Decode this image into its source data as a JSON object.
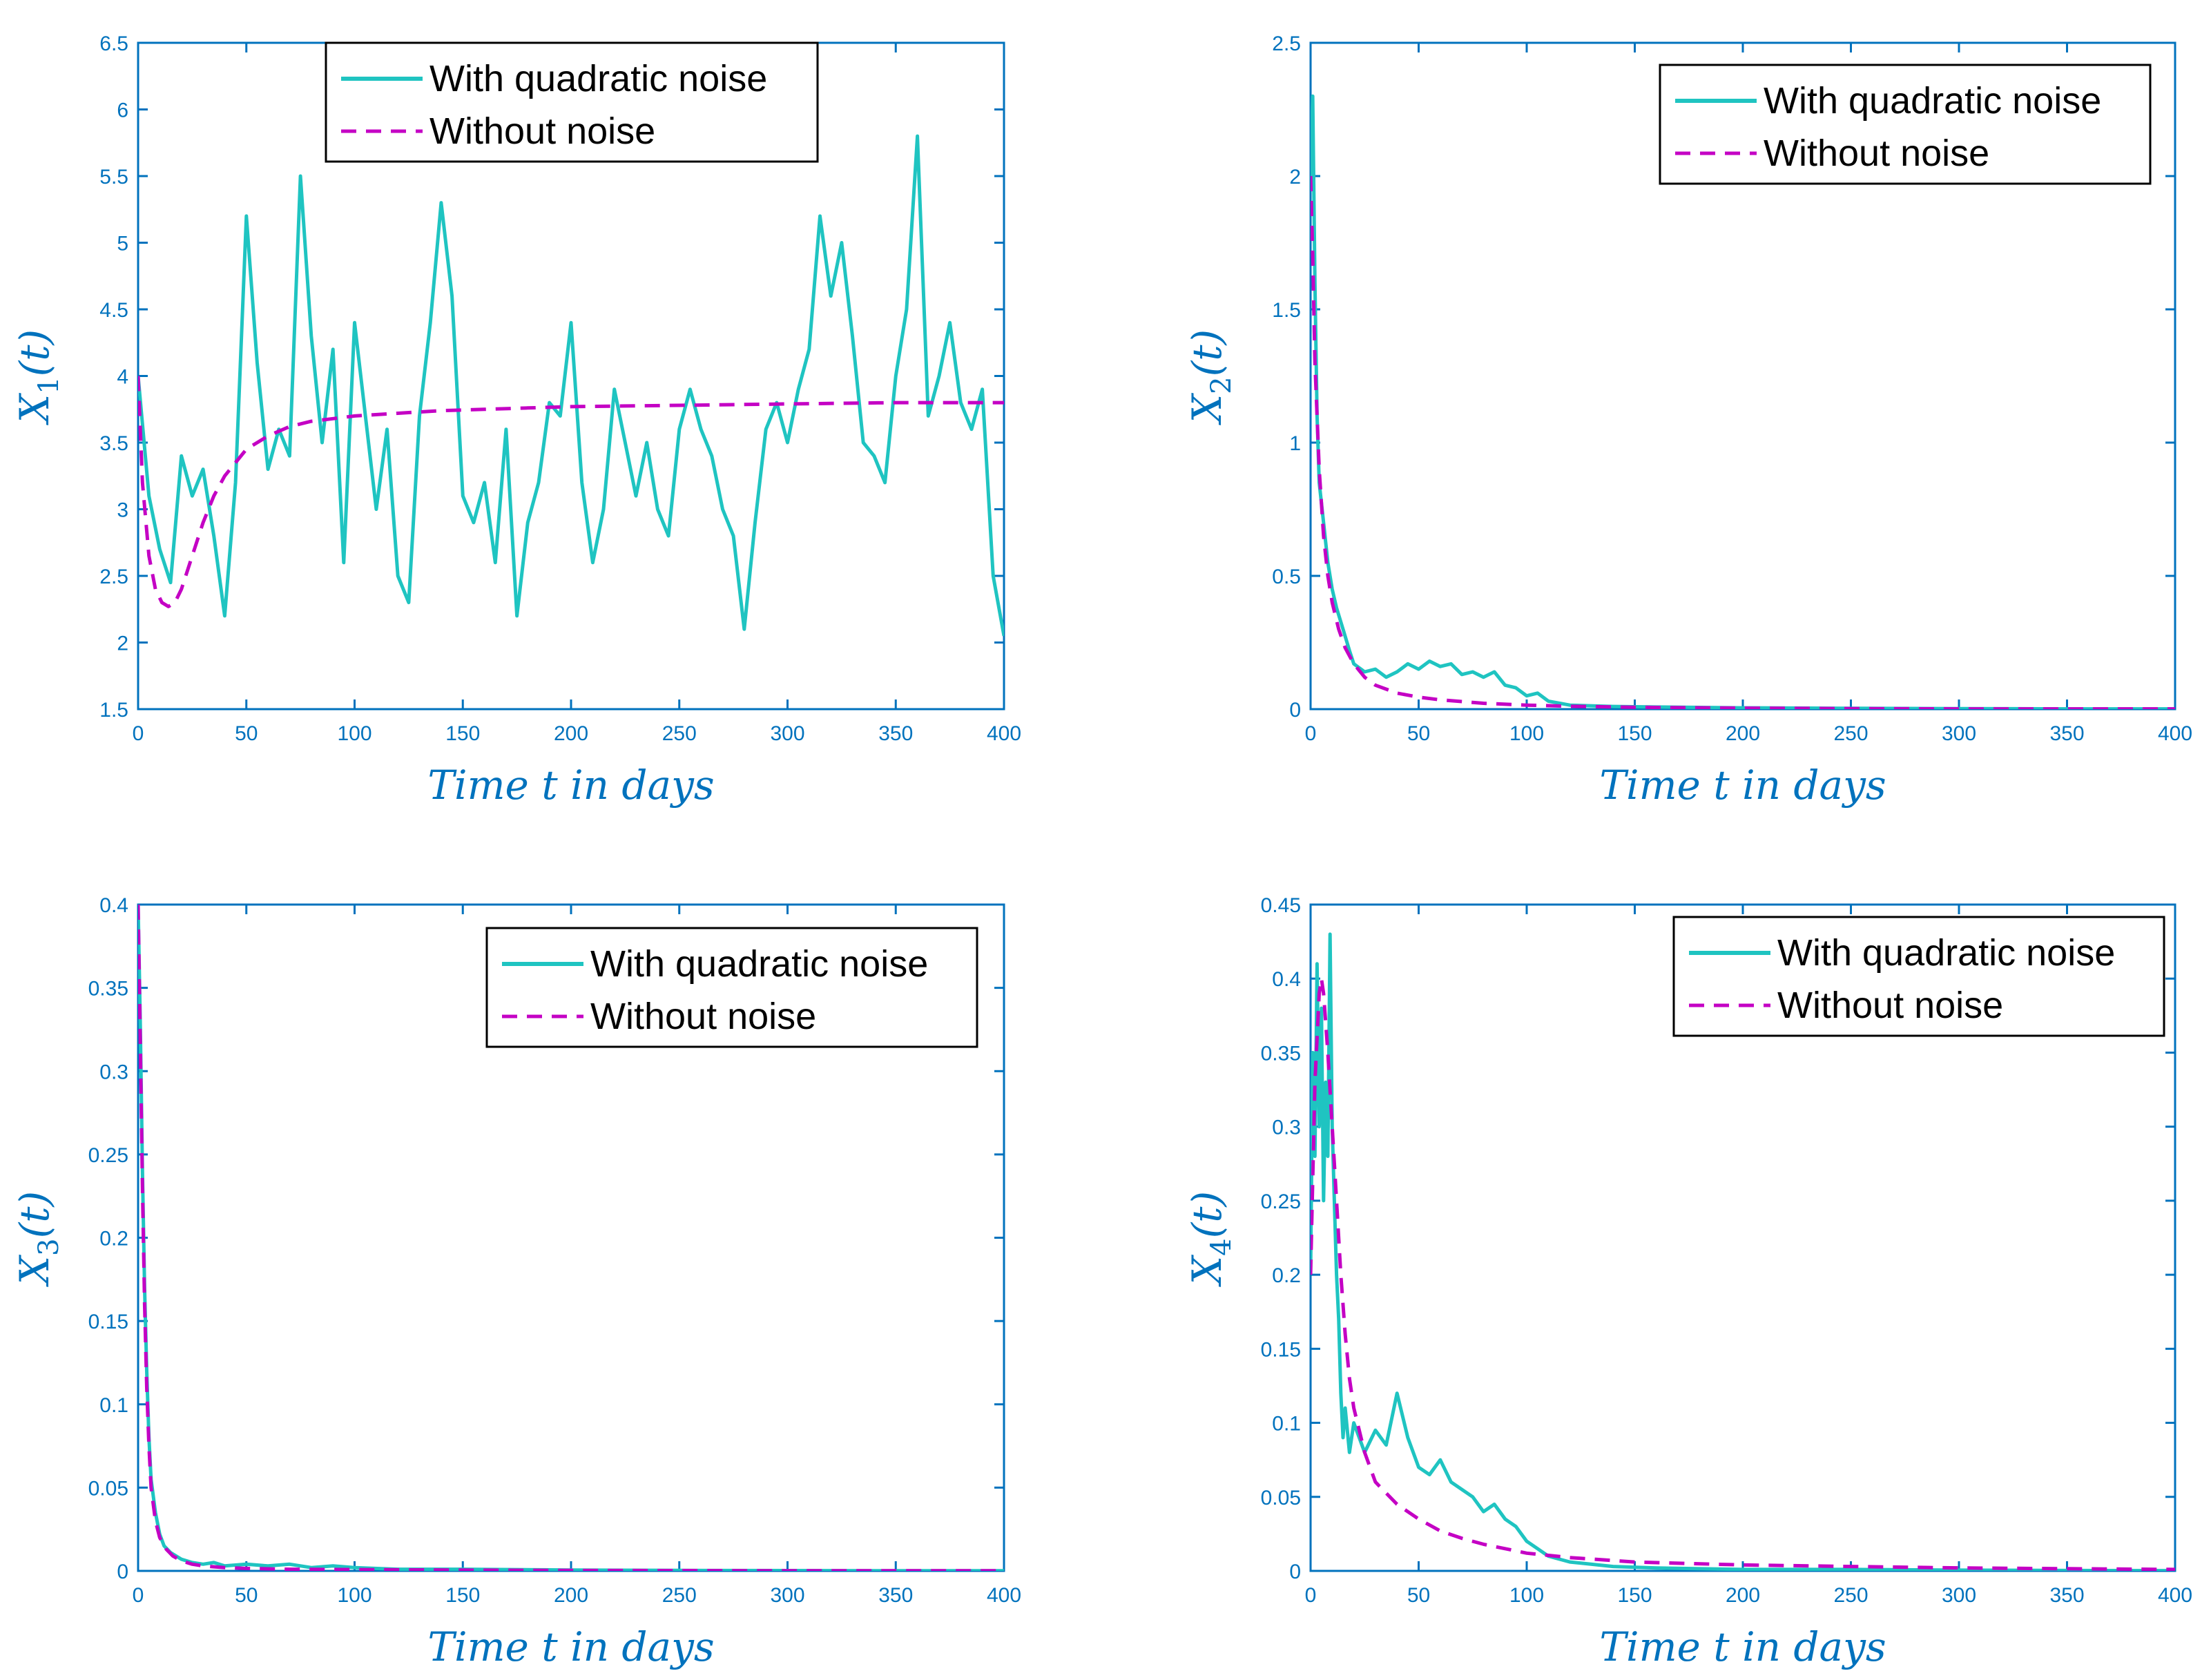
{
  "colors": {
    "axis": "#0072BD",
    "noise": "#1FC4C1",
    "deterministic": "#C400C4",
    "legend_border": "#000000"
  },
  "legend": {
    "noise_label": "With quadratic noise",
    "deterministic_label": "Without noise"
  },
  "chart_data": [
    {
      "id": "x1",
      "type": "line",
      "title": "",
      "xlabel": "Time t in days",
      "ylabel": "X1(t)",
      "ylabel_main": "X",
      "ylabel_sub": "1",
      "ylabel_tail": "(t)",
      "xlim": [
        0,
        400
      ],
      "ylim": [
        1.5,
        6.5
      ],
      "x_ticks": [
        0,
        50,
        100,
        150,
        200,
        250,
        300,
        350,
        400
      ],
      "x_tick_labels": [
        "0",
        "50",
        "100",
        "150",
        "200",
        "250",
        "300",
        "350",
        "400"
      ],
      "y_ticks": [
        1.5,
        2,
        2.5,
        3,
        3.5,
        4,
        4.5,
        5,
        5.5,
        6,
        6.5
      ],
      "y_tick_labels": [
        "1.5",
        "2",
        "2.5",
        "3",
        "3.5",
        "4",
        "4.5",
        "5",
        "5.5",
        "6",
        "6.5"
      ],
      "legend_position": "top-center",
      "series": [
        {
          "name": "With quadratic noise",
          "style": "solid",
          "x": [
            0,
            5,
            10,
            15,
            20,
            25,
            30,
            35,
            40,
            45,
            50,
            55,
            60,
            65,
            70,
            75,
            80,
            85,
            90,
            95,
            100,
            105,
            110,
            115,
            120,
            125,
            130,
            135,
            140,
            145,
            150,
            155,
            160,
            165,
            170,
            175,
            180,
            185,
            190,
            195,
            200,
            205,
            210,
            215,
            220,
            225,
            230,
            235,
            240,
            245,
            250,
            255,
            260,
            265,
            270,
            275,
            280,
            285,
            290,
            295,
            300,
            305,
            310,
            315,
            320,
            325,
            330,
            335,
            340,
            345,
            350,
            355,
            360,
            365,
            370,
            375,
            380,
            385,
            390,
            395,
            400
          ],
          "values": [
            4.0,
            3.1,
            2.7,
            2.45,
            3.4,
            3.1,
            3.3,
            2.8,
            2.2,
            3.2,
            5.2,
            4.1,
            3.3,
            3.6,
            3.4,
            5.5,
            4.3,
            3.5,
            4.2,
            2.6,
            4.4,
            3.7,
            3.0,
            3.6,
            2.5,
            2.3,
            3.7,
            4.4,
            5.3,
            4.6,
            3.1,
            2.9,
            3.2,
            2.6,
            3.6,
            2.2,
            2.9,
            3.2,
            3.8,
            3.7,
            4.4,
            3.2,
            2.6,
            3.0,
            3.9,
            3.5,
            3.1,
            3.5,
            3.0,
            2.8,
            3.6,
            3.9,
            3.6,
            3.4,
            3.0,
            2.8,
            2.1,
            2.9,
            3.6,
            3.8,
            3.5,
            3.9,
            4.2,
            5.2,
            4.6,
            5.0,
            4.3,
            3.5,
            3.4,
            3.2,
            4.0,
            4.5,
            5.8,
            3.7,
            4.0,
            4.4,
            3.8,
            3.6,
            3.9,
            2.5,
            2.05
          ]
        },
        {
          "name": "Without noise",
          "style": "dashed",
          "x": [
            0,
            2,
            5,
            8,
            11,
            14,
            17,
            20,
            25,
            30,
            35,
            40,
            45,
            50,
            60,
            70,
            80,
            90,
            100,
            120,
            140,
            160,
            180,
            200,
            250,
            300,
            350,
            400
          ],
          "values": [
            4.0,
            3.2,
            2.65,
            2.4,
            2.3,
            2.27,
            2.3,
            2.4,
            2.65,
            2.9,
            3.1,
            3.25,
            3.35,
            3.45,
            3.55,
            3.62,
            3.66,
            3.68,
            3.7,
            3.72,
            3.74,
            3.75,
            3.76,
            3.77,
            3.78,
            3.79,
            3.8,
            3.8
          ]
        }
      ]
    },
    {
      "id": "x2",
      "type": "line",
      "title": "",
      "xlabel": "Time t in days",
      "ylabel": "X2(t)",
      "ylabel_main": "X",
      "ylabel_sub": "2",
      "ylabel_tail": "(t)",
      "xlim": [
        0,
        400
      ],
      "ylim": [
        0,
        2.5
      ],
      "x_ticks": [
        0,
        50,
        100,
        150,
        200,
        250,
        300,
        350,
        400
      ],
      "x_tick_labels": [
        "0",
        "50",
        "100",
        "150",
        "200",
        "250",
        "300",
        "350",
        "400"
      ],
      "y_ticks": [
        0,
        0.5,
        1,
        1.5,
        2,
        2.5
      ],
      "y_tick_labels": [
        "0",
        "0.5",
        "1",
        "1.5",
        "2",
        "2.5"
      ],
      "legend_position": "top-right",
      "series": [
        {
          "name": "With quadratic noise",
          "style": "solid",
          "x": [
            0,
            1,
            2,
            3,
            4,
            6,
            8,
            10,
            12,
            15,
            18,
            20,
            25,
            30,
            35,
            40,
            45,
            50,
            55,
            60,
            65,
            70,
            75,
            80,
            85,
            90,
            95,
            100,
            105,
            110,
            120,
            140,
            160,
            200,
            250,
            300,
            350,
            400
          ],
          "values": [
            2.0,
            2.3,
            1.6,
            1.1,
            0.85,
            0.7,
            0.55,
            0.45,
            0.38,
            0.3,
            0.22,
            0.17,
            0.14,
            0.15,
            0.12,
            0.14,
            0.17,
            0.15,
            0.18,
            0.16,
            0.17,
            0.13,
            0.14,
            0.12,
            0.14,
            0.09,
            0.08,
            0.05,
            0.06,
            0.03,
            0.015,
            0.01,
            0.008,
            0.005,
            0.003,
            0.002,
            0.001,
            0.001
          ]
        },
        {
          "name": "Without noise",
          "style": "dashed",
          "x": [
            0,
            1,
            2,
            4,
            6,
            8,
            10,
            13,
            16,
            20,
            25,
            30,
            40,
            50,
            60,
            80,
            100,
            120,
            150,
            200,
            250,
            300,
            350,
            400
          ],
          "values": [
            2.0,
            1.7,
            1.3,
            0.9,
            0.65,
            0.5,
            0.4,
            0.3,
            0.23,
            0.17,
            0.12,
            0.09,
            0.06,
            0.045,
            0.035,
            0.022,
            0.015,
            0.011,
            0.007,
            0.004,
            0.002,
            0.001,
            0.001,
            0.001
          ]
        }
      ]
    },
    {
      "id": "x3",
      "type": "line",
      "title": "",
      "xlabel": "Time t in days",
      "ylabel": "X3(t)",
      "ylabel_main": "X",
      "ylabel_sub": "3",
      "ylabel_tail": "(t)",
      "xlim": [
        0,
        400
      ],
      "ylim": [
        0,
        0.4
      ],
      "x_ticks": [
        0,
        50,
        100,
        150,
        200,
        250,
        300,
        350,
        400
      ],
      "x_tick_labels": [
        "0",
        "50",
        "100",
        "150",
        "200",
        "250",
        "300",
        "350",
        "400"
      ],
      "y_ticks": [
        0,
        0.05,
        0.1,
        0.15,
        0.2,
        0.25,
        0.3,
        0.35,
        0.4
      ],
      "y_tick_labels": [
        "0",
        "0.05",
        "0.1",
        "0.15",
        "0.2",
        "0.25",
        "0.3",
        "0.35",
        "0.4"
      ],
      "legend_position": "top-right",
      "series": [
        {
          "name": "With quadratic noise",
          "style": "solid",
          "x": [
            0,
            1,
            2,
            3,
            4,
            5,
            6,
            8,
            10,
            12,
            15,
            20,
            25,
            30,
            35,
            40,
            50,
            60,
            70,
            80,
            90,
            100,
            120,
            150,
            200,
            250,
            300,
            350,
            400
          ],
          "values": [
            0.4,
            0.33,
            0.24,
            0.17,
            0.12,
            0.08,
            0.055,
            0.035,
            0.022,
            0.015,
            0.011,
            0.007,
            0.005,
            0.004,
            0.005,
            0.003,
            0.004,
            0.003,
            0.004,
            0.002,
            0.003,
            0.002,
            0.001,
            0.001,
            0.0005,
            0.0003,
            0.0002,
            0.0001,
            0.0001
          ]
        },
        {
          "name": "Without noise",
          "style": "dashed",
          "x": [
            0,
            1,
            2,
            3,
            4,
            5,
            6,
            8,
            10,
            13,
            16,
            20,
            25,
            30,
            40,
            50,
            70,
            100,
            150,
            200,
            250,
            300,
            350,
            400
          ],
          "values": [
            0.4,
            0.32,
            0.23,
            0.16,
            0.11,
            0.075,
            0.05,
            0.03,
            0.02,
            0.013,
            0.009,
            0.006,
            0.004,
            0.003,
            0.002,
            0.0015,
            0.001,
            0.0008,
            0.0005,
            0.0003,
            0.0002,
            0.0001,
            0.0001,
            0.0001
          ]
        }
      ]
    },
    {
      "id": "x4",
      "type": "line",
      "title": "",
      "xlabel": "Time t in days",
      "ylabel": "X4(t)",
      "ylabel_main": "X",
      "ylabel_sub": "4",
      "ylabel_tail": "(t)",
      "xlim": [
        0,
        400
      ],
      "ylim": [
        0,
        0.45
      ],
      "x_ticks": [
        0,
        50,
        100,
        150,
        200,
        250,
        300,
        350,
        400
      ],
      "x_tick_labels": [
        "0",
        "50",
        "100",
        "150",
        "200",
        "250",
        "300",
        "350",
        "400"
      ],
      "y_ticks": [
        0,
        0.05,
        0.1,
        0.15,
        0.2,
        0.25,
        0.3,
        0.35,
        0.4,
        0.45
      ],
      "y_tick_labels": [
        "0",
        "0.05",
        "0.1",
        "0.15",
        "0.2",
        "0.25",
        "0.3",
        "0.35",
        "0.4",
        "0.45"
      ],
      "legend_position": "top-right",
      "series": [
        {
          "name": "With quadratic noise",
          "style": "solid",
          "x": [
            0,
            1,
            2,
            3,
            4,
            5,
            6,
            7,
            8,
            9,
            10,
            11,
            12,
            13,
            14,
            15,
            16,
            18,
            20,
            25,
            30,
            35,
            40,
            45,
            50,
            55,
            60,
            65,
            70,
            75,
            80,
            85,
            90,
            95,
            100,
            105,
            110,
            120,
            140,
            160,
            200,
            250,
            300,
            350,
            400
          ],
          "values": [
            0.2,
            0.35,
            0.28,
            0.41,
            0.3,
            0.38,
            0.25,
            0.33,
            0.28,
            0.43,
            0.3,
            0.25,
            0.2,
            0.17,
            0.12,
            0.09,
            0.11,
            0.08,
            0.1,
            0.08,
            0.095,
            0.085,
            0.12,
            0.09,
            0.07,
            0.065,
            0.075,
            0.06,
            0.055,
            0.05,
            0.04,
            0.045,
            0.035,
            0.03,
            0.02,
            0.015,
            0.01,
            0.006,
            0.003,
            0.002,
            0.001,
            0.001,
            0.0005,
            0.0003,
            0.0002
          ]
        },
        {
          "name": "Without noise",
          "style": "dashed",
          "x": [
            0,
            2,
            4,
            5,
            6,
            8,
            10,
            12,
            14,
            16,
            18,
            20,
            25,
            30,
            40,
            50,
            60,
            70,
            80,
            90,
            100,
            120,
            150,
            200,
            250,
            300,
            350,
            400
          ],
          "values": [
            0.2,
            0.33,
            0.39,
            0.4,
            0.39,
            0.35,
            0.3,
            0.25,
            0.2,
            0.16,
            0.13,
            0.11,
            0.08,
            0.06,
            0.045,
            0.035,
            0.027,
            0.022,
            0.018,
            0.015,
            0.012,
            0.009,
            0.006,
            0.004,
            0.003,
            0.002,
            0.0015,
            0.001
          ]
        }
      ]
    }
  ]
}
